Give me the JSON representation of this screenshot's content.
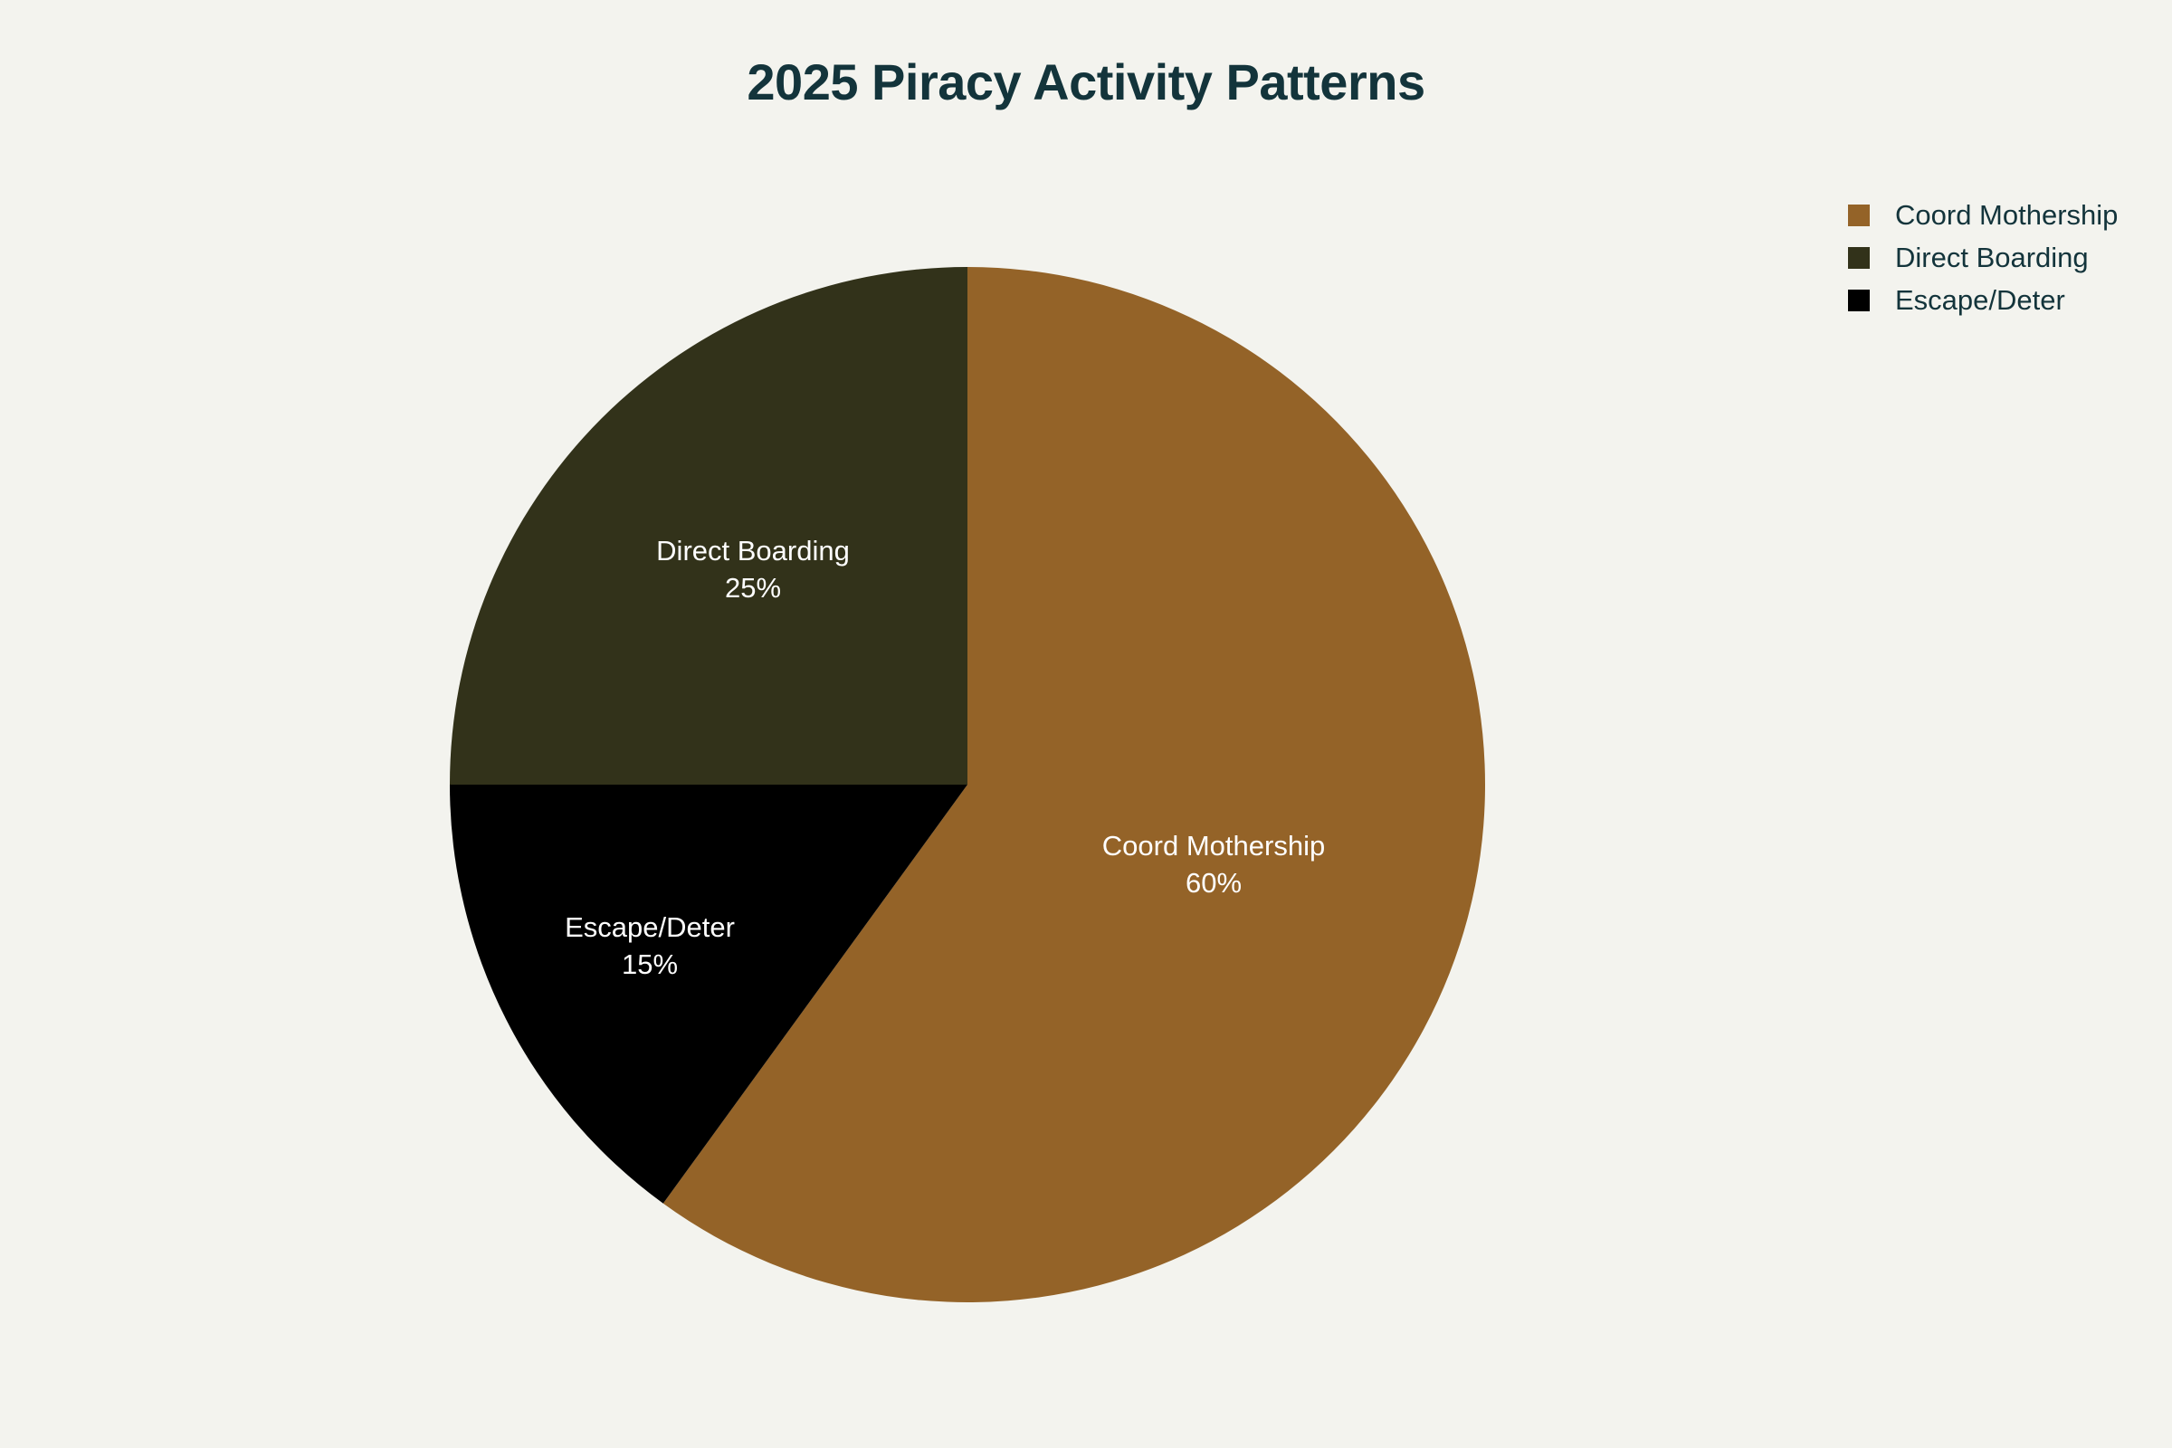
{
  "title": "2025 Piracy Activity Patterns",
  "chart_data": {
    "type": "pie",
    "title": "2025 Piracy Activity Patterns",
    "categories": [
      "Coord Mothership",
      "Direct Boarding",
      "Escape/Deter"
    ],
    "values": [
      60,
      25,
      15
    ],
    "unit": "%",
    "colors": [
      "#946328",
      "#32321a",
      "#000000"
    ],
    "slice_labels": [
      {
        "name": "Coord Mothership",
        "percent": "60%"
      },
      {
        "name": "Direct Boarding",
        "percent": "25%"
      },
      {
        "name": "Escape/Deter",
        "percent": "15%"
      }
    ],
    "legend_position": "top-right",
    "direction": "clockwise",
    "start_angle": "12 o'clock"
  },
  "legend": {
    "items": [
      {
        "label": "Coord Mothership",
        "color": "#946328"
      },
      {
        "label": "Direct Boarding",
        "color": "#32321a"
      },
      {
        "label": "Escape/Deter",
        "color": "#000000"
      }
    ]
  },
  "colors": {
    "background": "#f3f3ee",
    "title": "#13343b",
    "label_text": "#ffffff"
  }
}
